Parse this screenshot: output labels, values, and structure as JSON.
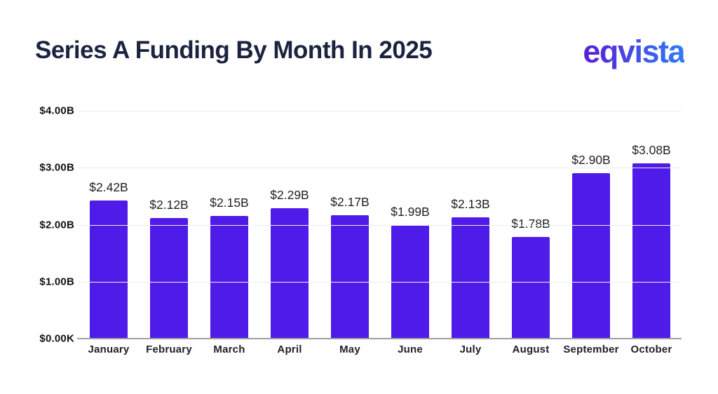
{
  "header": {
    "title": "Series A Funding By Month In 2025",
    "logo": "eqvista"
  },
  "colors": {
    "bar": "#4F1BE8",
    "title_text": "#1C2340",
    "label_text": "#212126",
    "tick_text": "#111114",
    "gridline": "#EDEDED",
    "baseline": "#9E9E9E",
    "logo_gradient_start": "#5B1ED6",
    "logo_gradient_end": "#2F7BF6"
  },
  "chart_data": {
    "type": "bar",
    "title": "Series A Funding By Month In 2025",
    "categories": [
      "January",
      "February",
      "March",
      "April",
      "May",
      "June",
      "July",
      "August",
      "September",
      "October"
    ],
    "values": [
      2.42,
      2.12,
      2.15,
      2.29,
      2.17,
      1.99,
      2.13,
      1.78,
      2.9,
      3.08
    ],
    "value_labels": [
      "$2.42B",
      "$2.12B",
      "$2.15B",
      "$2.29B",
      "$2.17B",
      "$1.99B",
      "$2.13B",
      "$1.78B",
      "$2.90B",
      "$3.08B"
    ],
    "y_ticks": [
      {
        "value": 4,
        "label": "$4.00B"
      },
      {
        "value": 3,
        "label": "$3.00B"
      },
      {
        "value": 2,
        "label": "$2.00B"
      },
      {
        "value": 1,
        "label": "$1.00B"
      },
      {
        "value": 0,
        "label": "$0.00K"
      }
    ],
    "ylim": [
      0,
      4
    ],
    "xlabel": "",
    "ylabel": "",
    "grid": true,
    "legend_position": "none",
    "bar_color": "#4F1BE8"
  }
}
